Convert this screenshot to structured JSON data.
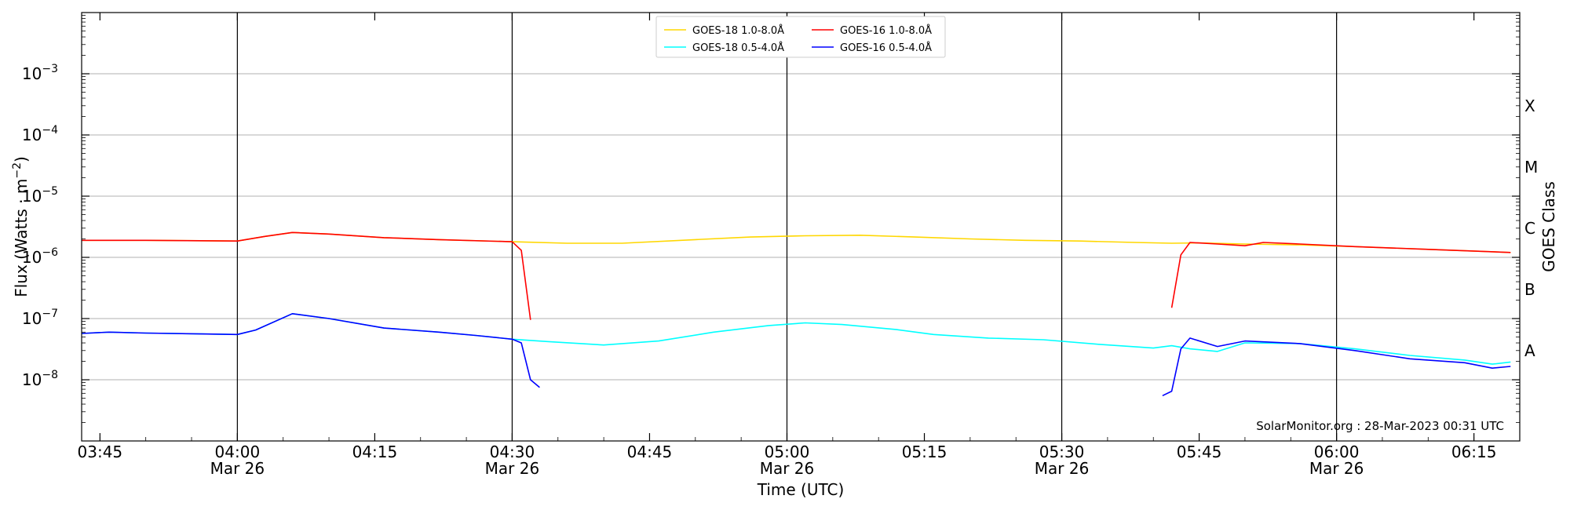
{
  "chart_data": {
    "type": "line",
    "xlabel": "Time (UTC)",
    "ylabel_main": "Flux (Watts · m",
    "ylabel_sup": "−2",
    "ylabel_close": ")",
    "y2label": "GOES Class",
    "y_scale": "log",
    "ylim": [
      1e-09,
      0.01
    ],
    "xlim_minutes": [
      223,
      380
    ],
    "grid": "horizontal at decades",
    "legend_position": "top-center",
    "watermark": "SolarMonitor.org : 28-Mar-2023 00:31 UTC",
    "y_ticks": [
      {
        "value": 1e-08,
        "base": "10",
        "exp": "−8"
      },
      {
        "value": 1e-07,
        "base": "10",
        "exp": "−7"
      },
      {
        "value": 1e-06,
        "base": "10",
        "exp": "−6"
      },
      {
        "value": 1e-05,
        "base": "10",
        "exp": "−5"
      },
      {
        "value": 0.0001,
        "base": "10",
        "exp": "−4"
      },
      {
        "value": 0.001,
        "base": "10",
        "exp": "−3"
      }
    ],
    "x_ticks": [
      {
        "minute": 225,
        "label": "03:45",
        "date": ""
      },
      {
        "minute": 240,
        "label": "04:00",
        "date": "Mar 26"
      },
      {
        "minute": 255,
        "label": "04:15",
        "date": ""
      },
      {
        "minute": 270,
        "label": "04:30",
        "date": "Mar 26"
      },
      {
        "minute": 285,
        "label": "04:45",
        "date": ""
      },
      {
        "minute": 300,
        "label": "05:00",
        "date": "Mar 26"
      },
      {
        "minute": 315,
        "label": "05:15",
        "date": ""
      },
      {
        "minute": 330,
        "label": "05:30",
        "date": "Mar 26"
      },
      {
        "minute": 345,
        "label": "05:45",
        "date": ""
      },
      {
        "minute": 360,
        "label": "06:00",
        "date": "Mar 26"
      },
      {
        "minute": 375,
        "label": "06:15",
        "date": ""
      }
    ],
    "vlines_minutes": [
      240,
      270,
      300,
      330,
      360
    ],
    "class_labels": [
      {
        "label": "X",
        "value": 0.0003
      },
      {
        "label": "M",
        "value": 3e-05
      },
      {
        "label": "C",
        "value": 3e-06
      },
      {
        "label": "B",
        "value": 3e-07
      },
      {
        "label": "A",
        "value": 3e-08
      }
    ],
    "series": [
      {
        "name": "GOES-18 1.0-8.0Å",
        "color": "#FFD700",
        "points": [
          [
            223,
            1.9e-06
          ],
          [
            230,
            1.9e-06
          ],
          [
            240,
            1.85e-06
          ],
          [
            243,
            2.2e-06
          ],
          [
            246,
            2.55e-06
          ],
          [
            250,
            2.4e-06
          ],
          [
            256,
            2.1e-06
          ],
          [
            262,
            1.95e-06
          ],
          [
            270,
            1.8e-06
          ],
          [
            276,
            1.7e-06
          ],
          [
            282,
            1.7e-06
          ],
          [
            290,
            1.95e-06
          ],
          [
            296,
            2.15e-06
          ],
          [
            302,
            2.25e-06
          ],
          [
            308,
            2.3e-06
          ],
          [
            314,
            2.15e-06
          ],
          [
            320,
            2e-06
          ],
          [
            326,
            1.9e-06
          ],
          [
            332,
            1.85e-06
          ],
          [
            338,
            1.75e-06
          ],
          [
            342,
            1.7e-06
          ],
          [
            345,
            1.72e-06
          ],
          [
            350,
            1.65e-06
          ],
          [
            356,
            1.6e-06
          ],
          [
            362,
            1.5e-06
          ],
          [
            370,
            1.35e-06
          ],
          [
            379,
            1.2e-06
          ]
        ]
      },
      {
        "name": "GOES-18 0.5-4.0Å",
        "color": "#00FFFF",
        "points": [
          [
            223,
            5.7e-08
          ],
          [
            226,
            6e-08
          ],
          [
            230,
            5.8e-08
          ],
          [
            236,
            5.6e-08
          ],
          [
            240,
            5.5e-08
          ],
          [
            242,
            6.5e-08
          ],
          [
            246,
            1.2e-07
          ],
          [
            250,
            1e-07
          ],
          [
            256,
            7e-08
          ],
          [
            262,
            6e-08
          ],
          [
            266,
            5.3e-08
          ],
          [
            270,
            4.6e-08
          ],
          [
            274,
            4.2e-08
          ],
          [
            280,
            3.7e-08
          ],
          [
            286,
            4.3e-08
          ],
          [
            292,
            6e-08
          ],
          [
            298,
            7.7e-08
          ],
          [
            302,
            8.5e-08
          ],
          [
            306,
            8e-08
          ],
          [
            312,
            6.6e-08
          ],
          [
            316,
            5.5e-08
          ],
          [
            322,
            4.8e-08
          ],
          [
            328,
            4.5e-08
          ],
          [
            334,
            3.8e-08
          ],
          [
            340,
            3.3e-08
          ],
          [
            342,
            3.6e-08
          ],
          [
            344,
            3.2e-08
          ],
          [
            347,
            2.9e-08
          ],
          [
            350,
            4e-08
          ],
          [
            356,
            3.9e-08
          ],
          [
            362,
            3.2e-08
          ],
          [
            368,
            2.5e-08
          ],
          [
            374,
            2.1e-08
          ],
          [
            377,
            1.8e-08
          ],
          [
            379,
            1.95e-08
          ]
        ]
      },
      {
        "name": "GOES-16 1.0-8.0Å",
        "color": "#FF0000",
        "segments": [
          [
            [
              223,
              1.9e-06
            ],
            [
              230,
              1.9e-06
            ],
            [
              240,
              1.85e-06
            ],
            [
              243,
              2.2e-06
            ],
            [
              246,
              2.55e-06
            ],
            [
              250,
              2.4e-06
            ],
            [
              256,
              2.1e-06
            ],
            [
              262,
              1.95e-06
            ],
            [
              270,
              1.8e-06
            ],
            [
              271,
              1.3e-06
            ],
            [
              272,
              9.5e-08
            ]
          ],
          [
            [
              342,
              1.5e-07
            ],
            [
              343,
              1.1e-06
            ],
            [
              344,
              1.75e-06
            ],
            [
              347,
              1.65e-06
            ],
            [
              350,
              1.55e-06
            ],
            [
              352,
              1.75e-06
            ],
            [
              356,
              1.65e-06
            ],
            [
              362,
              1.5e-06
            ],
            [
              370,
              1.35e-06
            ],
            [
              379,
              1.2e-06
            ]
          ]
        ]
      },
      {
        "name": "GOES-16 0.5-4.0Å",
        "color": "#0000FF",
        "segments": [
          [
            [
              223,
              5.7e-08
            ],
            [
              226,
              6e-08
            ],
            [
              230,
              5.8e-08
            ],
            [
              236,
              5.6e-08
            ],
            [
              240,
              5.5e-08
            ],
            [
              242,
              6.5e-08
            ],
            [
              246,
              1.2e-07
            ],
            [
              250,
              1e-07
            ],
            [
              256,
              7e-08
            ],
            [
              262,
              6e-08
            ],
            [
              266,
              5.3e-08
            ],
            [
              270,
              4.6e-08
            ],
            [
              271,
              4e-08
            ],
            [
              272,
              1e-08
            ],
            [
              273,
              7.5e-09
            ]
          ],
          [
            [
              341,
              5.5e-09
            ],
            [
              342,
              6.5e-09
            ],
            [
              343,
              3.2e-08
            ],
            [
              344,
              4.8e-08
            ],
            [
              347,
              3.5e-08
            ],
            [
              350,
              4.3e-08
            ],
            [
              356,
              3.9e-08
            ],
            [
              362,
              3e-08
            ],
            [
              368,
              2.2e-08
            ],
            [
              374,
              1.9e-08
            ],
            [
              377,
              1.55e-08
            ],
            [
              379,
              1.65e-08
            ]
          ]
        ]
      }
    ]
  }
}
